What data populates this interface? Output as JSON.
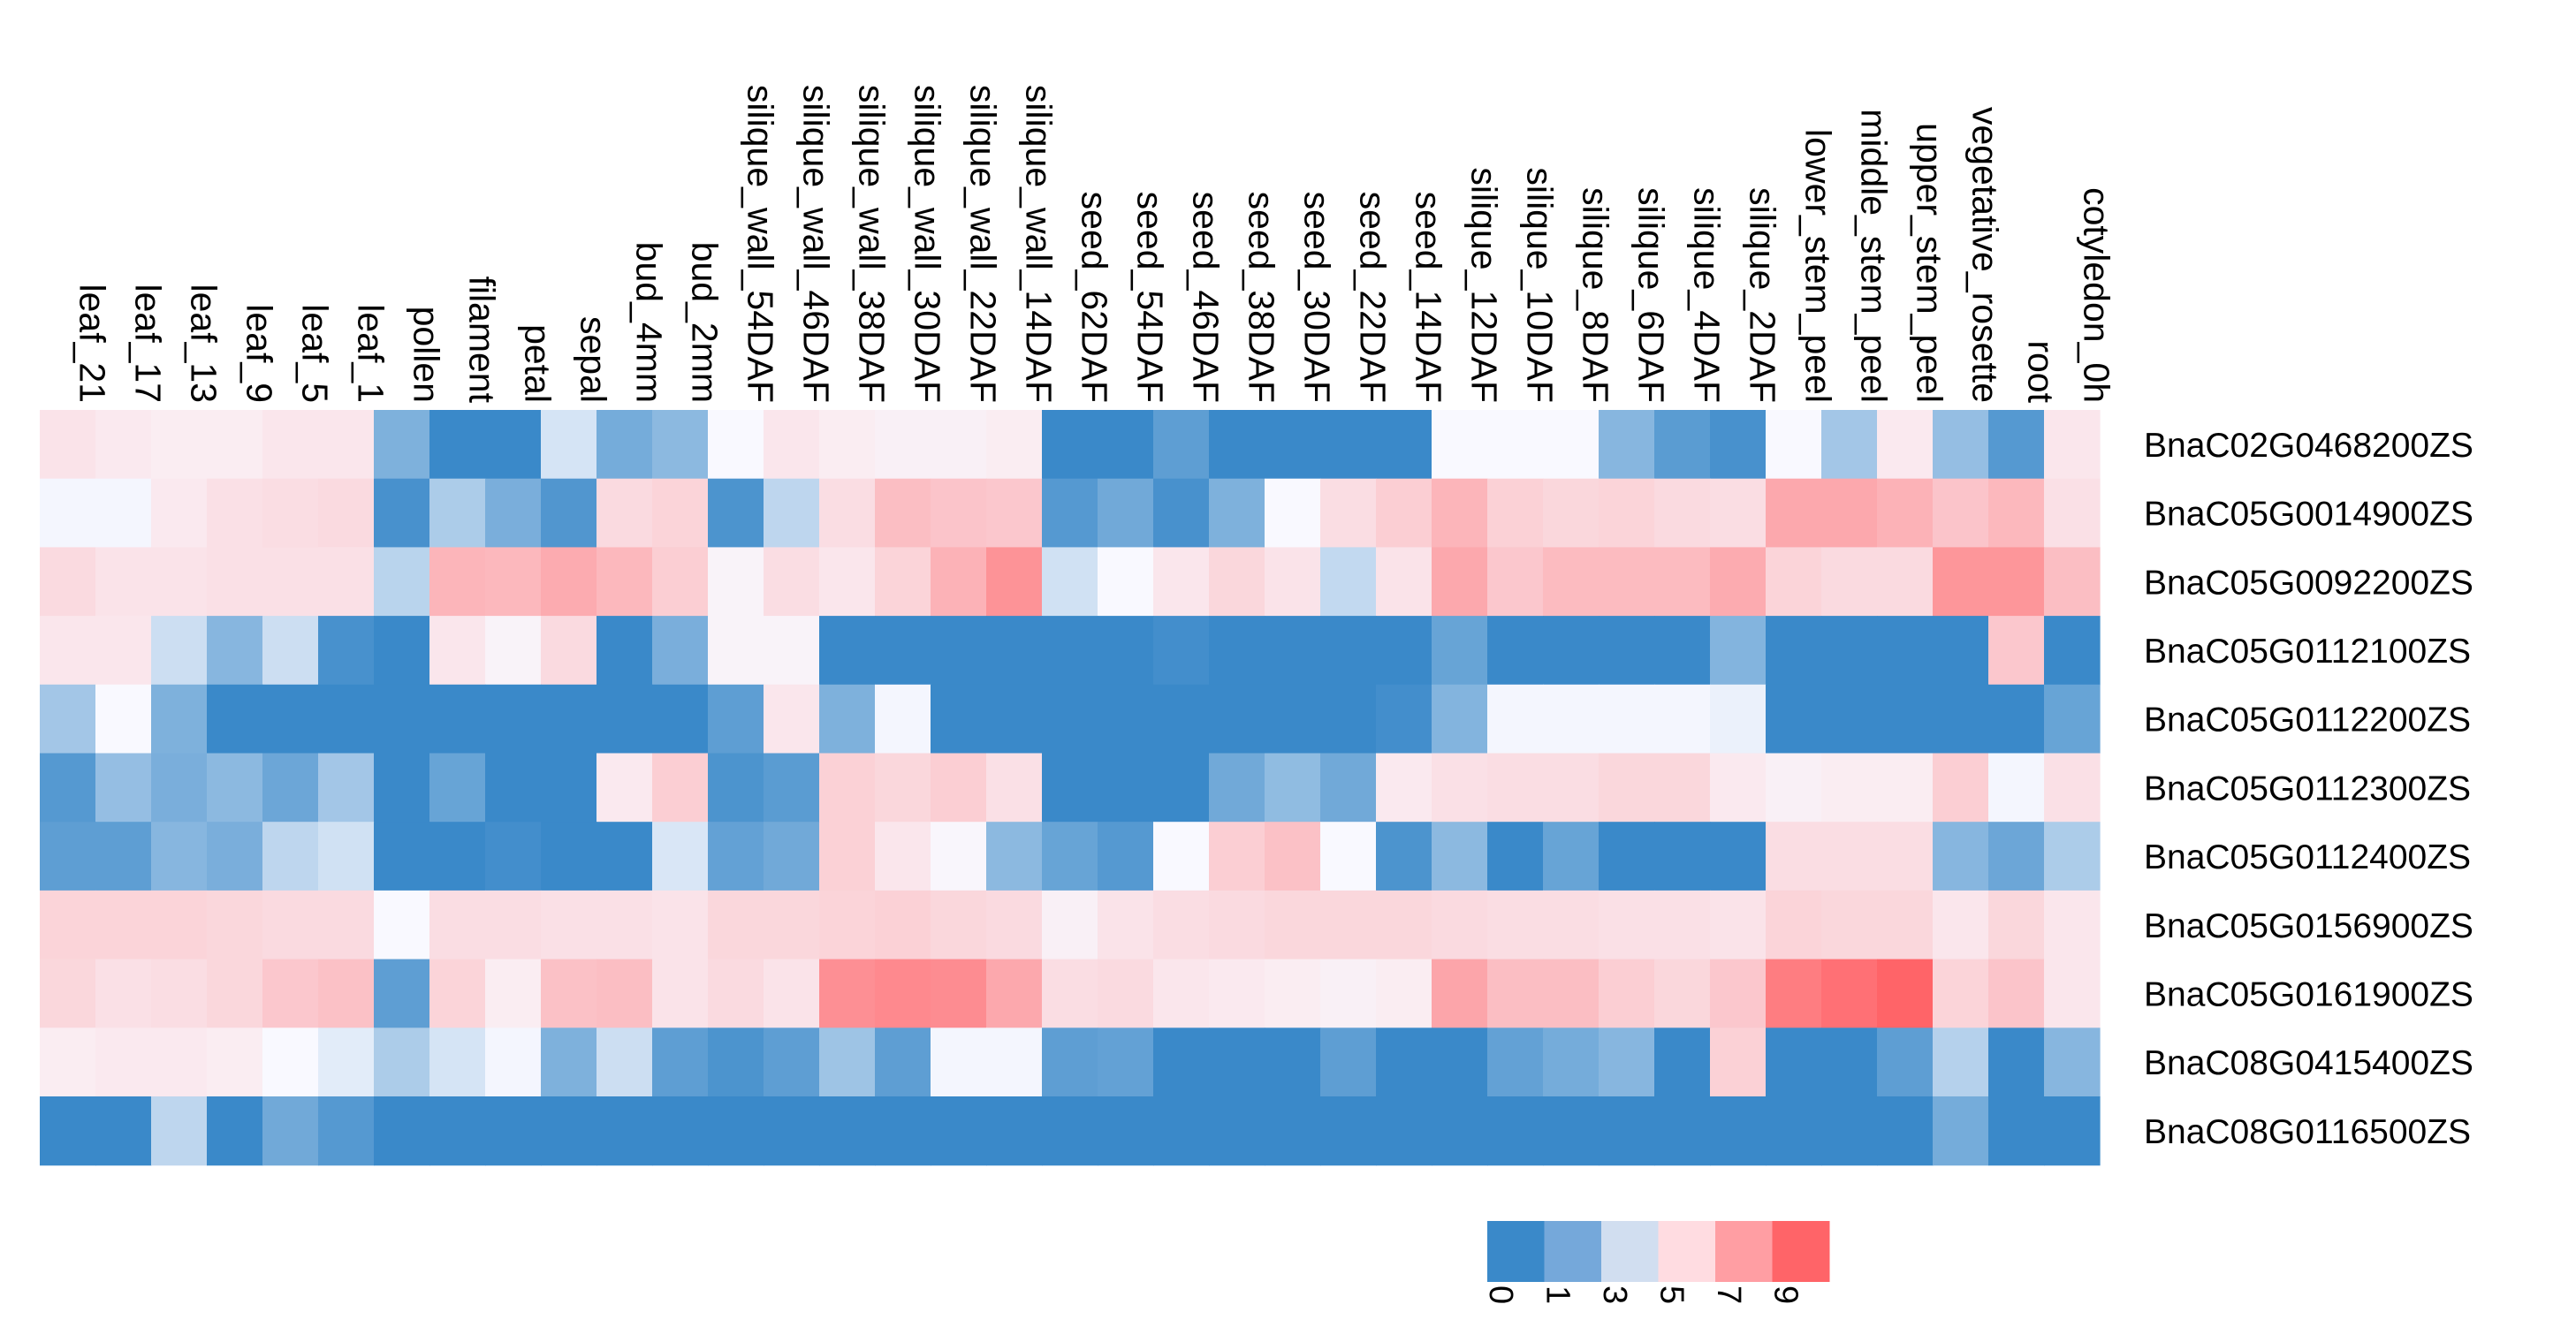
{
  "chart_data": {
    "type": "heatmap",
    "title": "",
    "columns": [
      "leaf_21",
      "leaf_17",
      "leaf_13",
      "leaf_9",
      "leaf_5",
      "leaf_1",
      "pollen",
      "filament",
      "petal",
      "sepal",
      "bud_4mm",
      "bud_2mm",
      "silique_wall_54DAF",
      "silique_wall_46DAF",
      "silique_wall_38DAF",
      "silique_wall_30DAF",
      "silique_wall_22DAF",
      "silique_wall_14DAF",
      "seed_62DAF",
      "seed_54DAF",
      "seed_46DAF",
      "seed_38DAF",
      "seed_30DAF",
      "seed_22DAF",
      "seed_14DAF",
      "silique_12DAF",
      "silique_10DAF",
      "silique_8DAF",
      "silique_6DAF",
      "silique_4DAF",
      "silique_2DAF",
      "lower_stem_peel",
      "middle_stem_peel",
      "upper_stem_peel",
      "vegetative_rosette",
      "root",
      "cotyledon_0h"
    ],
    "rows": [
      "BnaC02G0468200ZS",
      "BnaC05G0014900ZS",
      "BnaC05G0092200ZS",
      "BnaC05G0112100ZS",
      "BnaC05G0112200ZS",
      "BnaC05G0112300ZS",
      "BnaC05G0112400ZS",
      "BnaC05G0156900ZS",
      "BnaC05G0161900ZS",
      "BnaC08G0415400ZS",
      "BnaC08G0116500ZS"
    ],
    "values": [
      [
        4.9,
        4.7,
        4.6,
        4.6,
        4.8,
        4.8,
        1.5,
        0,
        0,
        3.4,
        1.3,
        1.8,
        4.2,
        4.8,
        4.6,
        4.5,
        4.5,
        4.6,
        0,
        0,
        0.8,
        0,
        0,
        0,
        0,
        4.2,
        4.2,
        4.2,
        1.7,
        0.7,
        0.3,
        4.2,
        2.3,
        4.7,
        2.0,
        0.6,
        4.8
      ],
      [
        4.1,
        4.1,
        4.7,
        5.0,
        5.1,
        5.2,
        0.3,
        2.5,
        1.4,
        0.5,
        5.2,
        5.4,
        0.4,
        2.9,
        5.1,
        6.1,
        5.9,
        5.8,
        0.6,
        1.2,
        0.3,
        1.5,
        4.2,
        5.1,
        5.6,
        6.4,
        5.5,
        5.3,
        5.4,
        5.2,
        5.1,
        6.8,
        6.8,
        6.5,
        5.9,
        6.3,
        5.0
      ],
      [
        5.2,
        4.9,
        4.9,
        5.0,
        5.0,
        5.0,
        2.8,
        6.4,
        6.3,
        6.7,
        6.3,
        5.6,
        4.4,
        5.1,
        4.8,
        5.4,
        6.5,
        7.5,
        3.3,
        4.2,
        4.8,
        5.3,
        4.9,
        3.0,
        4.9,
        6.8,
        5.8,
        6.2,
        6.2,
        6.2,
        6.7,
        5.4,
        5.2,
        5.2,
        7.4,
        7.4,
        6.1
      ],
      [
        4.8,
        4.8,
        3.2,
        1.7,
        3.2,
        0.3,
        0,
        4.8,
        4.4,
        5.2,
        0,
        1.4,
        4.4,
        4.4,
        0,
        0,
        0,
        0,
        0,
        0,
        0.2,
        0,
        0,
        0,
        0,
        1.0,
        0,
        0,
        0,
        0,
        1.6,
        0,
        0,
        0,
        0,
        5.8,
        0
      ],
      [
        2.3,
        4.2,
        1.5,
        0,
        0,
        0,
        0,
        0,
        0,
        0,
        0,
        0,
        0.8,
        4.8,
        1.5,
        4.1,
        0,
        0,
        0,
        0,
        0,
        0,
        0,
        0,
        0.2,
        1.6,
        4.1,
        4.1,
        4.1,
        4.1,
        3.9,
        0,
        0,
        0,
        0,
        0,
        1.0
      ],
      [
        0.6,
        2.0,
        1.4,
        1.8,
        1.1,
        2.3,
        0,
        1.0,
        0,
        0,
        4.7,
        5.6,
        0.4,
        0.7,
        5.5,
        5.3,
        5.6,
        5.0,
        0,
        0,
        0,
        1.2,
        1.9,
        1.2,
        4.7,
        5.0,
        5.1,
        5.1,
        5.3,
        5.3,
        4.7,
        4.5,
        4.6,
        4.6,
        5.6,
        4.1,
        5.0
      ],
      [
        0.8,
        0.8,
        1.7,
        1.4,
        2.9,
        3.3,
        0,
        0,
        0.2,
        0,
        0,
        3.5,
        0.9,
        1.2,
        5.5,
        4.8,
        4.3,
        1.8,
        1.0,
        0.6,
        4.2,
        5.6,
        6.0,
        4.2,
        0.4,
        1.8,
        0,
        1.0,
        0,
        0,
        0,
        5.1,
        5.1,
        5.1,
        1.7,
        1.1,
        2.5
      ],
      [
        5.4,
        5.4,
        5.4,
        5.3,
        5.2,
        5.2,
        4.2,
        5.1,
        5.1,
        5.0,
        5.0,
        4.9,
        5.3,
        5.3,
        5.4,
        5.5,
        5.3,
        5.2,
        4.5,
        4.9,
        5.1,
        5.2,
        5.3,
        5.3,
        5.3,
        5.2,
        5.1,
        5.1,
        5.0,
        5.0,
        4.9,
        5.4,
        5.3,
        5.3,
        4.8,
        5.3,
        4.8
      ],
      [
        5.3,
        5.0,
        5.1,
        5.3,
        5.8,
        6.0,
        0.8,
        5.4,
        4.6,
        6.0,
        6.1,
        4.9,
        5.2,
        4.9,
        7.6,
        7.8,
        7.7,
        6.8,
        5.1,
        5.2,
        4.8,
        4.7,
        4.6,
        4.5,
        4.6,
        6.9,
        6.1,
        6.1,
        5.6,
        5.3,
        5.8,
        8.2,
        8.6,
        9.0,
        5.4,
        5.9,
        4.8
      ],
      [
        4.6,
        4.7,
        4.7,
        4.6,
        4.2,
        3.7,
        2.5,
        3.4,
        4.1,
        1.5,
        3.2,
        0.8,
        0.4,
        0.8,
        2.2,
        0.8,
        4.1,
        4.1,
        0.8,
        0.9,
        0,
        0,
        0,
        0.8,
        0,
        0,
        0.9,
        1.3,
        1.7,
        0,
        5.5,
        0,
        0,
        0.8,
        2.7,
        0,
        1.7
      ],
      [
        0,
        0,
        2.9,
        0,
        1.2,
        0.6,
        0,
        0,
        0,
        0,
        0,
        0,
        0,
        0,
        0,
        0,
        0,
        0,
        0,
        0,
        0,
        0,
        0,
        0,
        0,
        0,
        0,
        0,
        0,
        0,
        0,
        0,
        0,
        0,
        1.3,
        0,
        0
      ]
    ],
    "xlabel": "",
    "ylabel": "",
    "color_scale": {
      "min": 0,
      "max": 9,
      "stops": [
        {
          "value": 0,
          "color": "#3A89C9"
        },
        {
          "value": 4.2,
          "color": "#F9F9FF"
        },
        {
          "value": 9,
          "color": "#FF6468"
        }
      ]
    },
    "legend": {
      "position": "bottom-right",
      "ticks": [
        "0",
        "1",
        "3",
        "5",
        "7",
        "9"
      ],
      "colors": [
        "#3A89C9",
        "#75A8DA",
        "#D1DEF0",
        "#FFDCE1",
        "#FF9EA3",
        "#FF6468"
      ]
    },
    "legend_bins": [
      {
        "from": 0,
        "to": 1,
        "color": "#3A89C9"
      },
      {
        "from": 1,
        "to": 3,
        "color": "#75A8DA"
      },
      {
        "from": 3,
        "to": 5,
        "color": "#D1DEF0"
      },
      {
        "from": 5,
        "to": 7,
        "color": "#FFDCE1"
      },
      {
        "from": 7,
        "to": 9,
        "color": "#FF9EA3"
      },
      {
        "from": 9,
        "to": 10,
        "color": "#FF6468"
      }
    ]
  }
}
